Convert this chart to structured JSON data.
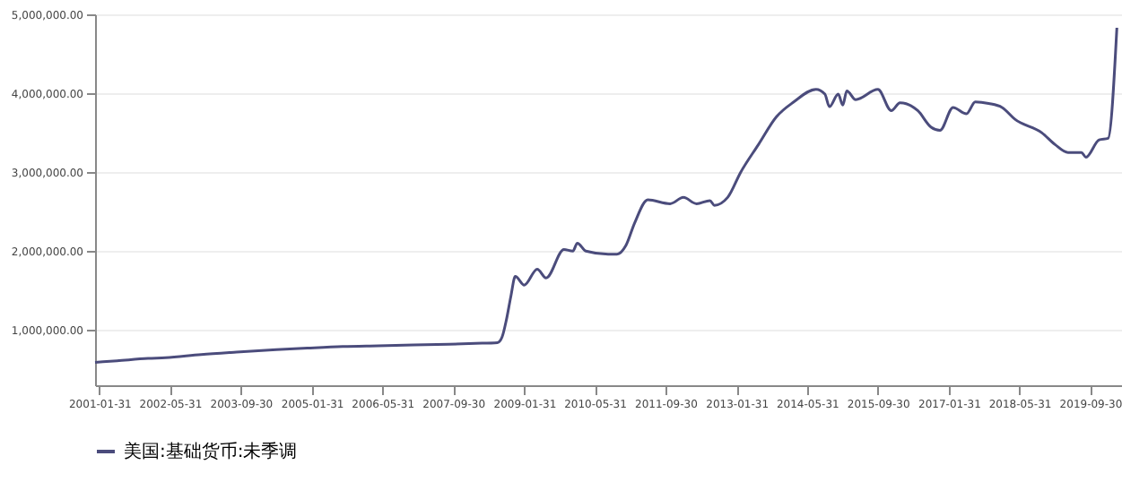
{
  "chart_data": {
    "type": "line",
    "x": [
      "2001-01",
      "2001-06",
      "2002-01",
      "2002-05",
      "2003-01",
      "2003-09",
      "2004-06",
      "2005-01",
      "2005-09",
      "2006-05",
      "2007-01",
      "2007-09",
      "2008-03",
      "2008-08",
      "2008-09",
      "2008-10",
      "2008-11",
      "2008-12",
      "2009-02",
      "2009-05",
      "2009-07",
      "2009-11",
      "2010-01",
      "2010-02",
      "2010-04",
      "2010-09",
      "2010-11",
      "2011-01",
      "2011-03",
      "2011-06",
      "2011-11",
      "2012-02",
      "2012-05",
      "2012-08",
      "2012-09",
      "2012-12",
      "2013-03",
      "2013-07",
      "2013-11",
      "2014-03",
      "2014-08",
      "2014-10",
      "2014-11",
      "2015-01",
      "2015-02",
      "2015-03",
      "2015-05",
      "2015-10",
      "2016-01",
      "2016-03",
      "2016-07",
      "2016-10",
      "2016-12",
      "2017-03",
      "2017-06",
      "2017-08",
      "2017-11",
      "2018-02",
      "2018-05",
      "2018-11",
      "2019-02",
      "2019-05",
      "2019-08",
      "2019-09",
      "2019-12",
      "2020-02",
      "2020-04"
    ],
    "series": [
      {
        "name": "美国:基础货币:未季调",
        "color": "#4b4c7c",
        "values": [
          590000,
          610000,
          640000,
          650000,
          690000,
          720000,
          750000,
          770000,
          790000,
          800000,
          810000,
          820000,
          830000,
          840000,
          910000,
          1130000,
          1430000,
          1680000,
          1570000,
          1770000,
          1660000,
          2020000,
          2000000,
          2100000,
          2000000,
          1960000,
          1960000,
          2070000,
          2350000,
          2650000,
          2600000,
          2680000,
          2600000,
          2640000,
          2580000,
          2680000,
          3000000,
          3350000,
          3700000,
          3890000,
          4050000,
          3990000,
          3830000,
          3990000,
          3850000,
          4030000,
          3920000,
          4050000,
          3780000,
          3880000,
          3780000,
          3570000,
          3530000,
          3820000,
          3740000,
          3890000,
          3870000,
          3820000,
          3670000,
          3500000,
          3350000,
          3250000,
          3250000,
          3190000,
          3410000,
          3430000,
          4830000
        ]
      }
    ],
    "xlim": [
      "2001-01-01",
      "2020-04-30"
    ],
    "xticks": [
      "2001-01-31",
      "2002-05-31",
      "2003-09-30",
      "2005-01-31",
      "2006-05-31",
      "2007-09-30",
      "2009-01-31",
      "2010-05-31",
      "2011-09-30",
      "2013-01-31",
      "2014-05-31",
      "2015-09-30",
      "2017-01-31",
      "2018-05-31",
      "2019-09-30"
    ],
    "ylim": [
      300000,
      5000000
    ],
    "yticks": [
      {
        "value": 1000000,
        "label": "1,000,000.00"
      },
      {
        "value": 2000000,
        "label": "2,000,000.00"
      },
      {
        "value": 3000000,
        "label": "3,000,000.00"
      },
      {
        "value": 4000000,
        "label": "4,000,000.00"
      },
      {
        "value": 5000000,
        "label": "5,000,000.00"
      }
    ],
    "grid": "y",
    "legend": "bottom",
    "line_style": "solid",
    "marker": "none"
  }
}
